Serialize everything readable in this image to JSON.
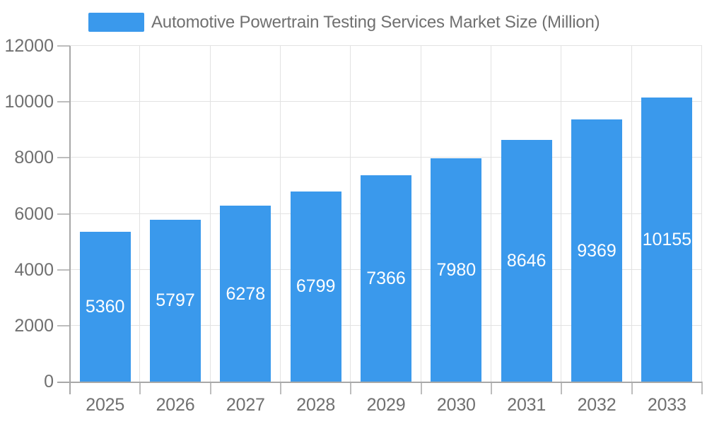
{
  "legend": {
    "label": "Automotive Powertrain Testing Services Market Size (Million)"
  },
  "chart_data": {
    "type": "bar",
    "title": "Automotive Powertrain Testing Services Market Size (Million)",
    "categories": [
      "2025",
      "2026",
      "2027",
      "2028",
      "2029",
      "2030",
      "2031",
      "2032",
      "2033"
    ],
    "series": [
      {
        "name": "Automotive Powertrain Testing Services Market Size (Million)",
        "values": [
          5360,
          5797,
          6278,
          6799,
          7366,
          7980,
          8646,
          9369,
          10155
        ]
      }
    ],
    "xlabel": "",
    "ylabel": "",
    "ylim": [
      0,
      12000
    ],
    "y_ticks": [
      0,
      2000,
      4000,
      6000,
      8000,
      10000,
      12000
    ],
    "grid": true,
    "legend_position": "top-left",
    "value_labels": "inside-center",
    "colors": {
      "bar": "#3A99EC",
      "bar_value_label": "#FFFFFF",
      "axis_label": "#707070",
      "legend_label": "#707070",
      "gridline": "#E2E2E2",
      "axis_line": "#A8A8A8",
      "tick": "#BDBDBD",
      "background": "#FFFFFF"
    }
  }
}
